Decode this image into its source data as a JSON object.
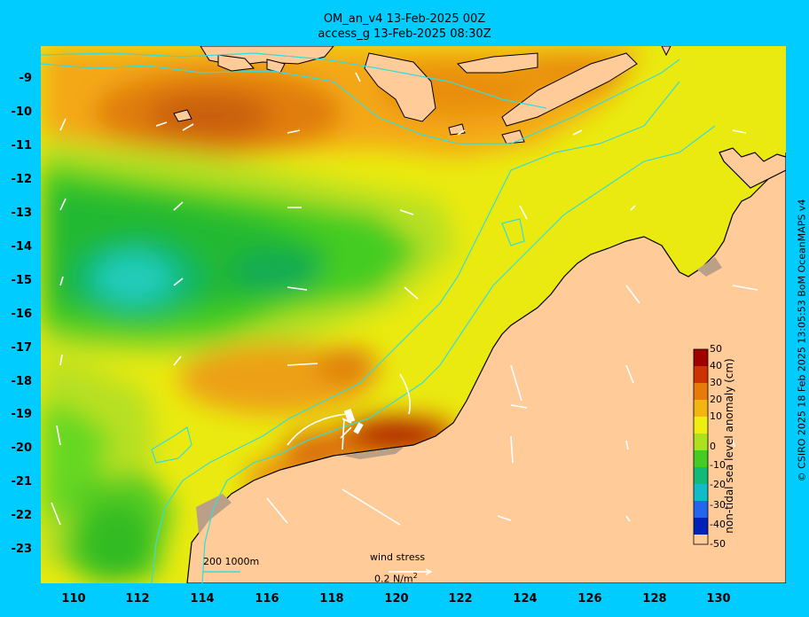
{
  "title": {
    "line1": "OM_an_v4  13-Feb-2025 00Z",
    "line2": "access_g 13-Feb-2025 08:30Z"
  },
  "axes": {
    "lon_ticks": [
      "110",
      "112",
      "114",
      "116",
      "118",
      "120",
      "122",
      "124",
      "126",
      "128",
      "130"
    ],
    "lat_ticks": [
      "-9",
      "-10",
      "-11",
      "-12",
      "-13",
      "-14",
      "-15",
      "-16",
      "-17",
      "-18",
      "-19",
      "-20",
      "-21",
      "-22",
      "-23"
    ],
    "lon_range": [
      109,
      132
    ],
    "lat_range": [
      -24,
      -8.1
    ]
  },
  "colorbar": {
    "label": "non-tidal sea level anomaly (cm)",
    "ticks": [
      "50",
      "40",
      "30",
      "20",
      "10",
      "0",
      "-10",
      "-20",
      "-30",
      "-40",
      "-50"
    ],
    "range": [
      -50,
      50
    ]
  },
  "legend": {
    "isobaths": "200  1000m",
    "wind_stress_label": "wind stress",
    "wind_stress_scale": "0.2 N/m",
    "wind_stress_scale_sup": "2"
  },
  "credit": "© CSIRO 2025  18 Feb 2025 13:05:53 BoM OceanMAPS v4",
  "colors": {
    "background": "#00ccff",
    "land": "#ffcc99",
    "isobath": "#33dddd",
    "vectors": "#ffffff"
  }
}
